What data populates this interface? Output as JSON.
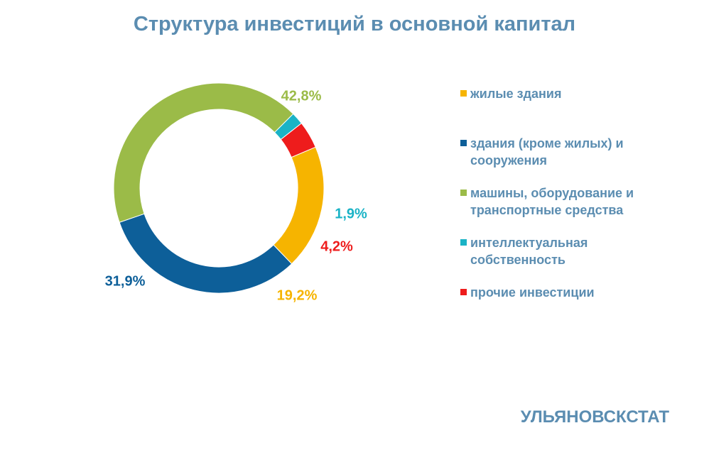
{
  "chart_data": {
    "type": "pie",
    "variant": "donut",
    "title": "Структура инвестиций в основной капитал",
    "categories": [
      "жилые здания",
      "здания (кроме жилых) и сооружения",
      "машины, оборудование и транспортные средства",
      "интеллектуальная собственность",
      "прочие инвестиции"
    ],
    "values": [
      19.2,
      31.9,
      42.8,
      1.9,
      4.2
    ],
    "value_labels": [
      "19,2%",
      "31,9%",
      "42,8%",
      "1,9%",
      "4,2%"
    ],
    "colors": [
      "#f6b400",
      "#0d5f99",
      "#9bbb48",
      "#1ab3c6",
      "#ee1c1c"
    ],
    "legend": "right",
    "unit": "%"
  },
  "title": "Структура инвестиций в основной капитал",
  "legend_items": [
    {
      "label": "жилые здания",
      "color": "#f6b400"
    },
    {
      "label": "здания (кроме жилых) и сооружения",
      "color": "#0d5f99"
    },
    {
      "label": "машины, оборудование и транспортные средства",
      "color": "#9bbb48"
    },
    {
      "label": "интеллектуальная собственность",
      "color": "#1ab3c6"
    },
    {
      "label": "прочие инвестиции",
      "color": "#ee1c1c"
    }
  ],
  "footer": "УЛЬЯНОВСКСТАТ"
}
